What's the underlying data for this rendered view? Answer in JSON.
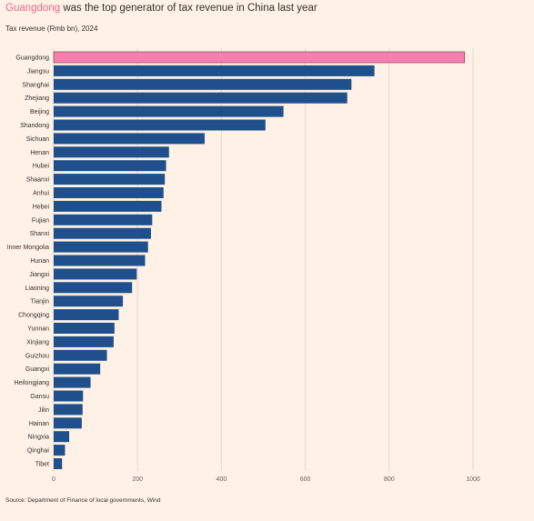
{
  "header": {
    "title_highlight": "Guangdong",
    "title_rest": " was the top generator of tax revenue in China last year",
    "subtitle": "Tax revenue (Rmb bn), 2024"
  },
  "footer": {
    "source": "Source: Department of Finance of local governments, Wind"
  },
  "colors": {
    "highlight": "#f77fae",
    "bar": "#1f508c",
    "background": "#fff1e5",
    "grid": "#e2d8cf"
  },
  "chart_data": {
    "type": "bar",
    "orientation": "horizontal",
    "categories": [
      "Guangdong",
      "Jiangsu",
      "Shanghai",
      "Zhejiang",
      "Beijing",
      "Shandong",
      "Sichuan",
      "Henan",
      "Hubei",
      "Shaanxi",
      "Anhui",
      "Hebei",
      "Fujian",
      "Shanxi",
      "Inner Mongolia",
      "Hunan",
      "Jiangxi",
      "Liaoning",
      "Tianjin",
      "Chongqing",
      "Yunnan",
      "Xinjiang",
      "Guizhou",
      "Guangxi",
      "Heilongjiang",
      "Gansu",
      "Jilin",
      "Hainan",
      "Ningxia",
      "Qinghai",
      "Tibet"
    ],
    "values": [
      980,
      765,
      710,
      700,
      548,
      505,
      360,
      275,
      268,
      265,
      262,
      257,
      235,
      232,
      225,
      218,
      198,
      187,
      165,
      155,
      145,
      143,
      127,
      111,
      88,
      70,
      69,
      67,
      37,
      27,
      20
    ],
    "highlight_index": 0,
    "title": "Guangdong was the top generator of tax revenue in China last year",
    "subtitle": "Tax revenue (Rmb bn), 2024",
    "xlim": [
      0,
      1000
    ],
    "xticks": [
      0,
      200,
      400,
      600,
      800,
      1000
    ],
    "grid": "vertical"
  }
}
